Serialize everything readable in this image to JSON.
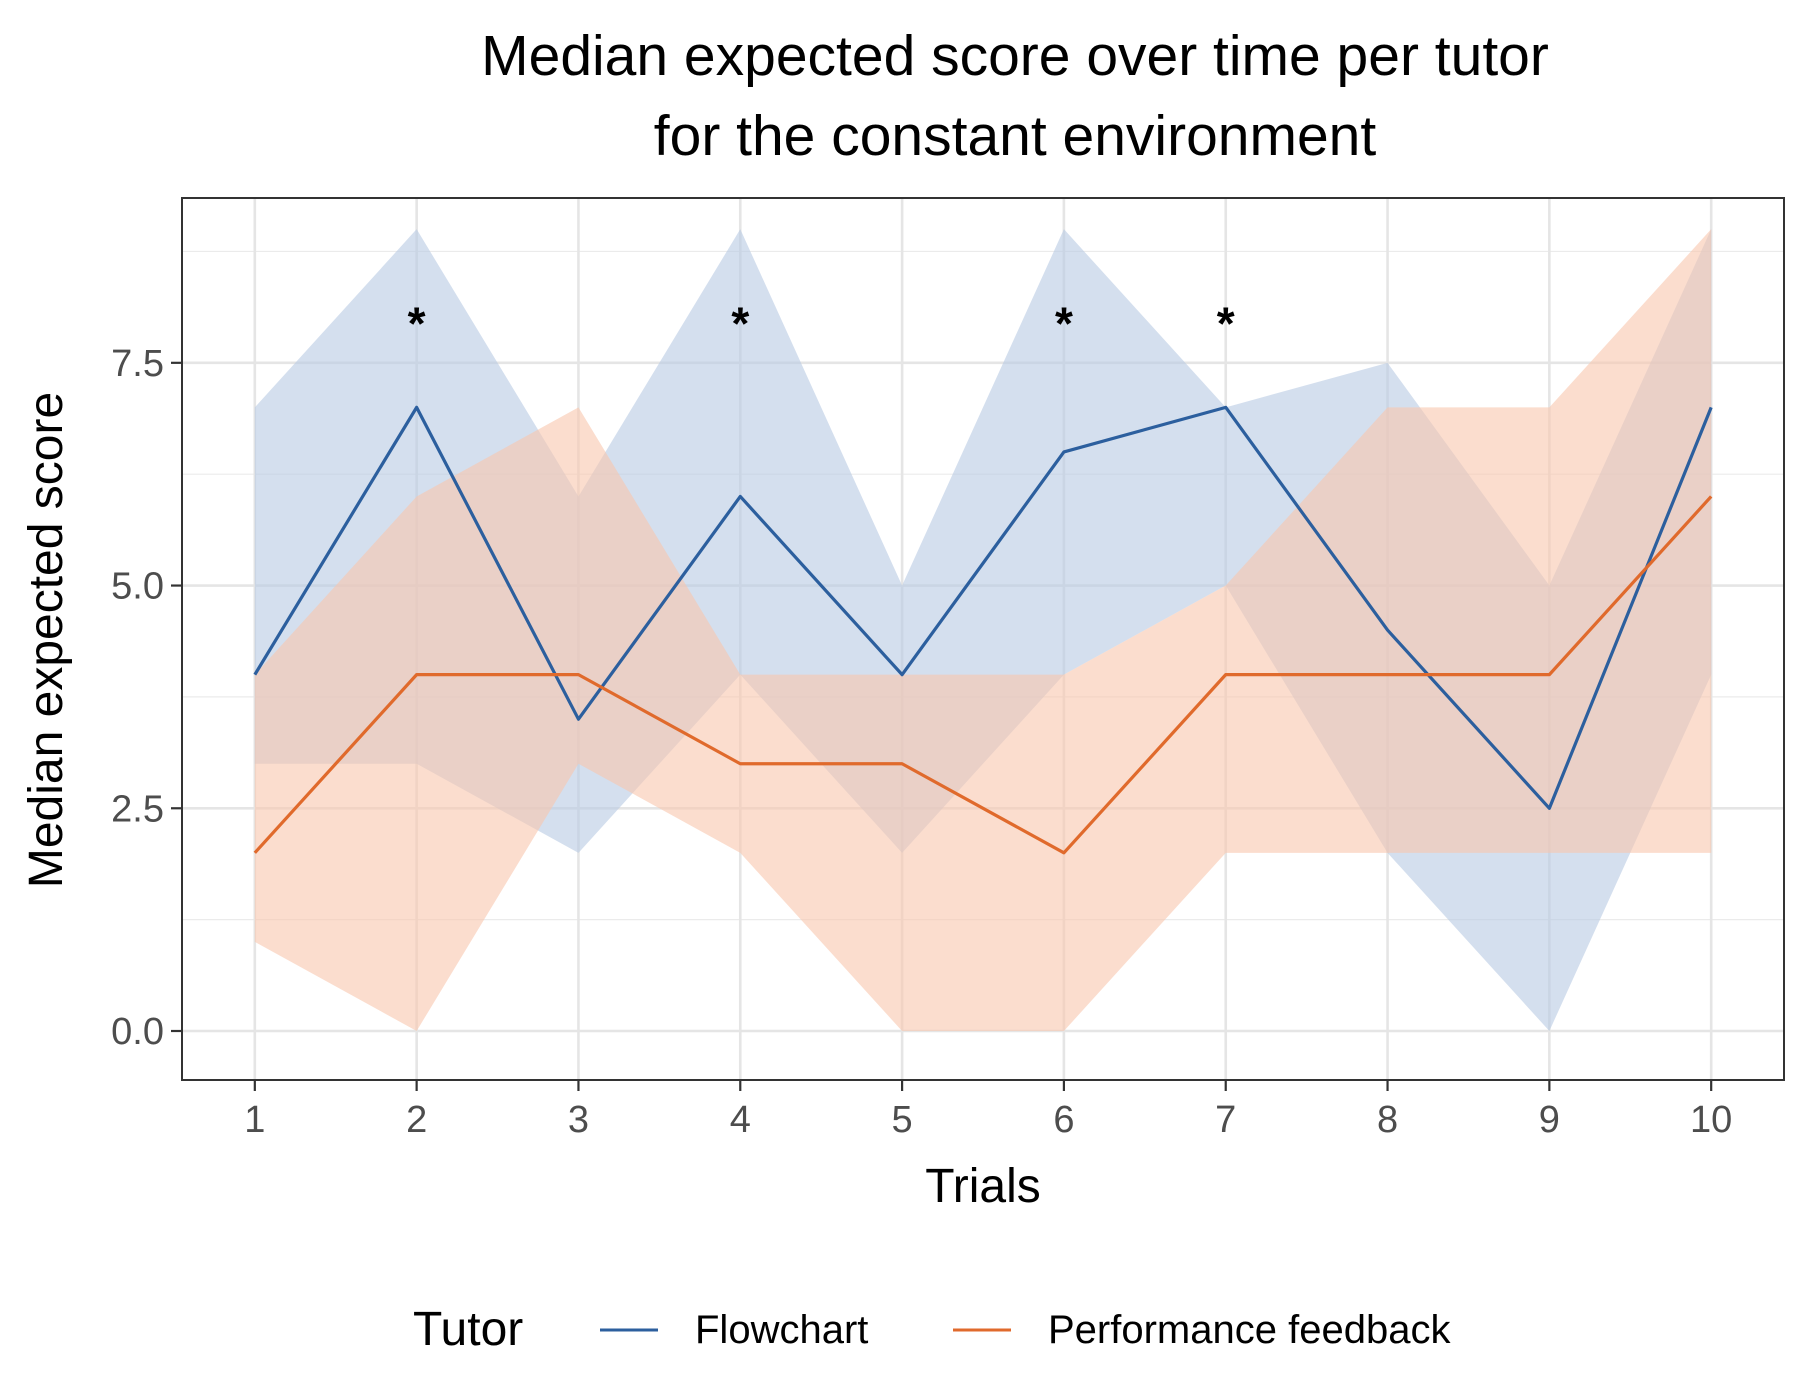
{
  "chart_data": {
    "type": "line",
    "title_lines": [
      "Median expected score over time per tutor",
      "for the constant environment"
    ],
    "xlabel": "Trials",
    "ylabel": "Median expected score",
    "x": [
      1,
      2,
      3,
      4,
      5,
      6,
      7,
      8,
      9,
      10
    ],
    "xlim": [
      0.55,
      10.45
    ],
    "ylim": [
      -0.55,
      9.35
    ],
    "y_ticks": [
      0.0,
      2.5,
      5.0,
      7.5
    ],
    "y_tick_labels": [
      "0.0",
      "2.5",
      "5.0",
      "7.5"
    ],
    "x_tick_labels": [
      "1",
      "2",
      "3",
      "4",
      "5",
      "6",
      "7",
      "8",
      "9",
      "10"
    ],
    "grid": true,
    "legend": {
      "title": "Tutor",
      "placement": "bottom"
    },
    "series": [
      {
        "name": "Flowchart",
        "color": "#2c5f9e",
        "band_color": "#b8c9e2",
        "median": [
          4,
          7,
          3.5,
          6,
          4,
          6.5,
          7,
          4.5,
          2.5,
          7
        ],
        "lower": [
          3,
          3,
          2,
          4,
          2,
          4,
          5,
          2,
          0,
          4
        ],
        "upper": [
          7,
          9,
          6,
          9,
          5,
          9,
          7,
          7.5,
          5,
          9
        ]
      },
      {
        "name": "Performance feedback",
        "color": "#e06a2c",
        "band_color": "#f9c7ad",
        "median": [
          2,
          4,
          4,
          3,
          3,
          2,
          4,
          4,
          4,
          6
        ],
        "lower": [
          1,
          0,
          3,
          2,
          0,
          0,
          2,
          2,
          2,
          2
        ],
        "upper": [
          4,
          6,
          7,
          4,
          4,
          4,
          5,
          7,
          7,
          9
        ]
      }
    ],
    "annotations": [
      {
        "x": 2,
        "text": "*"
      },
      {
        "x": 4,
        "text": "*"
      },
      {
        "x": 6,
        "text": "*"
      },
      {
        "x": 7,
        "text": "*"
      }
    ],
    "annotation_y": 8.1
  }
}
